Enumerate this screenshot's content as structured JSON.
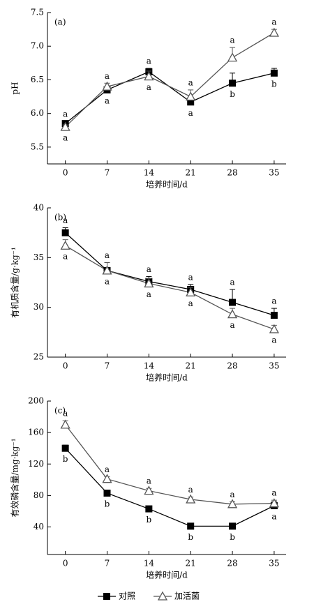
{
  "chart_data": [
    {
      "type": "line",
      "label": "(a)",
      "ylabel": "pH",
      "xlabel": "培养时间/d",
      "x": [
        0,
        7,
        14,
        21,
        28,
        35
      ],
      "xlim": [
        -3,
        37
      ],
      "xticks": [
        0,
        7,
        14,
        21,
        28,
        35
      ],
      "ylim": [
        5.25,
        7.5
      ],
      "yticks": [
        {
          "value": 5.5,
          "label": "5.5"
        },
        {
          "value": 6,
          "label": "6.0"
        },
        {
          "value": 6.5,
          "label": "6.5"
        },
        {
          "value": 7,
          "label": "7.0"
        },
        {
          "value": 7.5,
          "label": "7.5"
        }
      ],
      "series": [
        {
          "color": "#000000",
          "marker": "square",
          "values": [
            5.85,
            6.35,
            6.62,
            6.17,
            6.45,
            6.6
          ],
          "errors": [
            0.03,
            0.03,
            0.05,
            0.03,
            0.15,
            0.07
          ],
          "letters": [
            "a",
            "a",
            "a",
            "a",
            "b",
            "b"
          ]
        },
        {
          "color": "#555555",
          "marker": "triangle",
          "values": [
            5.8,
            6.4,
            6.55,
            6.25,
            6.83,
            7.2
          ],
          "errors": [
            0.03,
            0.05,
            0.08,
            0.1,
            0.15,
            0.05
          ],
          "letters": [
            "a",
            "a",
            "a",
            "a",
            "a",
            "a"
          ]
        }
      ]
    },
    {
      "type": "line",
      "label": "(b)",
      "ylabel": "有机质含量/g·kg⁻¹",
      "xlabel": "培养时间/d",
      "x": [
        0,
        7,
        14,
        21,
        28,
        35
      ],
      "xlim": [
        -3,
        37
      ],
      "xticks": [
        0,
        7,
        14,
        21,
        28,
        35
      ],
      "ylim": [
        25,
        40
      ],
      "yticks": [
        25,
        30,
        35,
        40
      ],
      "series": [
        {
          "color": "#000000",
          "marker": "square",
          "values": [
            37.5,
            33.7,
            32.6,
            31.8,
            30.5,
            29.2
          ],
          "errors": [
            0.5,
            0.8,
            0.5,
            0.5,
            1.3,
            0.7
          ],
          "letters": [
            "a",
            "a",
            "a",
            "a",
            "a",
            "a"
          ]
        },
        {
          "color": "#555555",
          "marker": "triangle",
          "values": [
            36.2,
            33.7,
            32.4,
            31.5,
            29.3,
            27.8
          ],
          "errors": [
            0.6,
            0.8,
            0.5,
            0.5,
            0.6,
            0.4
          ],
          "letters": [
            "a",
            "a",
            "a",
            "a",
            "a",
            "a"
          ]
        }
      ]
    },
    {
      "type": "line",
      "label": "(c)",
      "ylabel": "有效磷含量/mg·kg⁻¹",
      "xlabel": "培养时间/d",
      "x": [
        0,
        7,
        14,
        21,
        28,
        35
      ],
      "xlim": [
        -3,
        37
      ],
      "xticks": [
        0,
        7,
        14,
        21,
        28,
        35
      ],
      "ylim": [
        5,
        200
      ],
      "yticks": [
        40,
        80,
        120,
        160,
        200
      ],
      "series": [
        {
          "name": "对照",
          "color": "#000000",
          "marker": "square",
          "values": [
            140,
            83,
            63,
            41,
            41,
            67
          ],
          "errors": [
            4,
            3,
            3,
            2,
            3,
            5
          ],
          "letters": [
            "b",
            "b",
            "b",
            "b",
            "b",
            "a"
          ]
        },
        {
          "name": "加活菌",
          "color": "#555555",
          "marker": "triangle",
          "values": [
            170,
            101,
            86,
            75,
            69,
            70
          ],
          "errors": [
            5,
            3,
            3,
            3,
            3,
            4
          ],
          "letters": [
            "a",
            "a",
            "a",
            "a",
            "a",
            "a"
          ]
        }
      ]
    }
  ]
}
